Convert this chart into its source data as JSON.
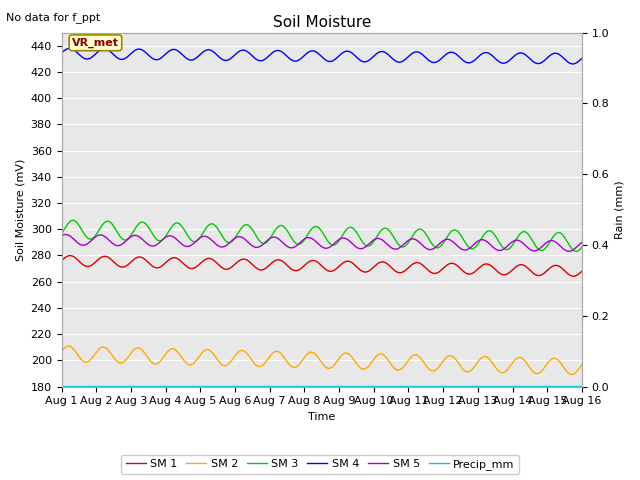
{
  "title": "Soil Moisture",
  "top_left_text": "No data for f_ppt",
  "xlabel": "Time",
  "ylabel_left": "Soil Moisture (mV)",
  "ylabel_right": "Rain (mm)",
  "annotation_text": "VR_met",
  "ylim_left": [
    180,
    450
  ],
  "ylim_right": [
    0.0,
    1.0
  ],
  "yticks_left": [
    180,
    200,
    220,
    240,
    260,
    280,
    300,
    320,
    340,
    360,
    380,
    400,
    420,
    440
  ],
  "yticks_right": [
    0.0,
    0.2,
    0.4,
    0.6,
    0.8,
    1.0
  ],
  "xtick_labels": [
    "Aug 1",
    "Aug 2",
    "Aug 3",
    "Aug 4",
    "Aug 5",
    "Aug 6",
    "Aug 7",
    "Aug 8",
    "Aug 9",
    "Aug 10",
    "Aug 11",
    "Aug 12",
    "Aug 13",
    "Aug 14",
    "Aug 15",
    "Aug 16"
  ],
  "n_points": 1440,
  "sm1_base": 276,
  "sm1_amp": 4,
  "sm1_freq": 15,
  "sm1_trend": -8,
  "sm2_base": 205,
  "sm2_amp": 6,
  "sm2_freq": 15,
  "sm2_trend": -10,
  "sm3_base": 300,
  "sm3_amp": 7,
  "sm3_freq": 15,
  "sm3_trend": -10,
  "sm4_base": 434,
  "sm4_amp": 4,
  "sm4_freq": 15,
  "sm4_trend": -4,
  "sm5_base": 292,
  "sm5_amp": 4,
  "sm5_freq": 15,
  "sm5_trend": -5,
  "precip_val": 180,
  "sm1_color": "#dd0000",
  "sm2_color": "#ffaa00",
  "sm3_color": "#00cc00",
  "sm4_color": "#0000ff",
  "sm5_color": "#aa00cc",
  "precip_color": "#00ccdd",
  "bg_color": "#e8e8e8",
  "fig_bg_color": "#ffffff",
  "grid_color": "#ffffff",
  "legend_items": [
    "SM 1",
    "SM 2",
    "SM 3",
    "SM 4",
    "SM 5",
    "Precip_mm"
  ],
  "legend_colors": [
    "#dd0000",
    "#ffaa00",
    "#00cc00",
    "#0000ff",
    "#aa00cc",
    "#00ccdd"
  ]
}
